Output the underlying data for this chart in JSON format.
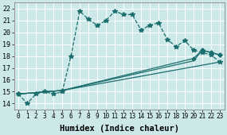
{
  "xlabel": "Humidex (Indice chaleur)",
  "bg_color": "#cde8e8",
  "grid_color": "#b8d8d8",
  "line_color": "#1a6e6e",
  "xlim": [
    -0.5,
    23.5
  ],
  "ylim": [
    13.5,
    22.5
  ],
  "xticks": [
    0,
    1,
    2,
    3,
    4,
    5,
    6,
    7,
    8,
    9,
    10,
    11,
    12,
    13,
    14,
    15,
    16,
    17,
    18,
    19,
    20,
    21,
    22,
    23
  ],
  "yticks": [
    14,
    15,
    16,
    17,
    18,
    19,
    20,
    21,
    22
  ],
  "series_dashed": {
    "x": [
      0,
      1,
      2,
      3,
      4,
      5,
      6,
      7,
      8,
      9,
      10,
      11,
      12,
      13,
      14,
      15,
      16,
      17,
      18,
      19,
      20,
      21,
      22,
      23
    ],
    "y": [
      14.8,
      14.0,
      14.8,
      15.0,
      14.8,
      15.0,
      18.0,
      21.8,
      21.1,
      20.6,
      21.0,
      21.8,
      21.5,
      21.5,
      20.2,
      20.6,
      20.8,
      19.4,
      18.8,
      19.3,
      18.5,
      18.3,
      18.1,
      17.5
    ]
  },
  "series_straight1": {
    "x": [
      0,
      5,
      23
    ],
    "y": [
      14.8,
      15.1,
      17.5
    ]
  },
  "series_straight2": {
    "x": [
      0,
      5,
      20,
      21,
      22,
      23
    ],
    "y": [
      14.8,
      15.1,
      17.6,
      18.5,
      18.3,
      18.1
    ]
  },
  "series_straight3": {
    "x": [
      0,
      5,
      20,
      21,
      22,
      23
    ],
    "y": [
      14.8,
      15.1,
      17.8,
      18.5,
      18.3,
      18.1
    ]
  },
  "xlabel_fontsize": 7.5,
  "tick_fontsize": 5.5
}
